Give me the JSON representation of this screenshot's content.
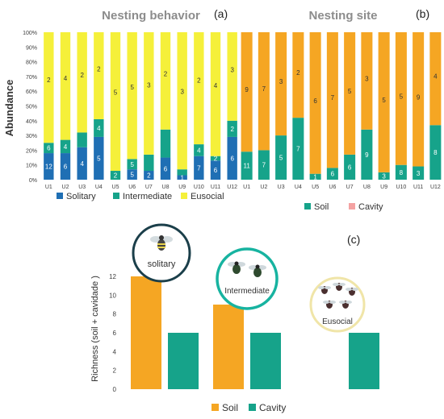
{
  "colors": {
    "solitary": "#1f6fb4",
    "intermediate": "#16a38a",
    "eusocial": "#f5f03a",
    "soil": "#16a38a",
    "cavity": "#f5a623",
    "cavity_legend": "#f4a2a2",
    "soil_c": "#f5a623",
    "cavity_c": "#16a38a"
  },
  "chart_data": [
    {
      "panel": "(a)",
      "type": "bar",
      "stacked": true,
      "percent": true,
      "title": "Nesting behavior",
      "ylabel": "Abundance",
      "ylim": [
        0,
        100
      ],
      "yticks": [
        "0%",
        "10%",
        "20%",
        "30%",
        "40%",
        "50%",
        "60%",
        "70%",
        "80%",
        "90%",
        "100%"
      ],
      "categories": [
        "U1",
        "U2",
        "U3",
        "U4",
        "U5",
        "U6",
        "U7",
        "U8",
        "U9",
        "U10",
        "U11",
        "U12"
      ],
      "series": [
        {
          "name": "Solitary",
          "values": [
            12,
            6,
            4,
            5,
            0,
            5,
            2,
            6,
            1,
            7,
            6,
            6
          ],
          "pct": [
            18,
            18,
            22,
            29,
            0,
            7,
            6,
            15,
            3,
            16,
            13,
            29
          ],
          "labels": [
            "12",
            "6",
            "4",
            "5",
            "",
            "5",
            "2",
            "6",
            "1",
            "7",
            "6",
            "6"
          ]
        },
        {
          "name": "Intermediate",
          "values": [
            6,
            4,
            3,
            4,
            2,
            5,
            3,
            6,
            2,
            4,
            2,
            2
          ],
          "pct": [
            7,
            9,
            10,
            12,
            6,
            7,
            11,
            19,
            4,
            8,
            3,
            11
          ],
          "labels": [
            "6",
            "4",
            "",
            "4",
            "2",
            "5",
            "",
            "",
            "",
            "4",
            "2",
            "2"
          ]
        },
        {
          "name": "Eusocial",
          "values": [
            2,
            4,
            2,
            2,
            5,
            5,
            3,
            2,
            3,
            2,
            4,
            3
          ],
          "pct": [
            75,
            73,
            68,
            59,
            94,
            86,
            83,
            66,
            93,
            76,
            84,
            60
          ],
          "labels": [
            "2",
            "4",
            "2",
            "2",
            "5",
            "5",
            "3",
            "2",
            "3",
            "2",
            "4",
            "3"
          ]
        }
      ],
      "legend": [
        "Solitary",
        "Intermediate",
        "Eusocial"
      ]
    },
    {
      "panel": "(b)",
      "type": "bar",
      "stacked": true,
      "percent": true,
      "title": "Nesting site",
      "categories": [
        "U1",
        "U2",
        "U3",
        "U4",
        "U5",
        "U6",
        "U7",
        "U8",
        "U9",
        "U10",
        "U11",
        "U12"
      ],
      "series": [
        {
          "name": "Soil",
          "values": [
            11,
            7,
            5,
            7,
            1,
            6,
            6,
            9,
            3,
            8,
            3,
            8
          ],
          "pct": [
            19,
            20,
            30,
            42,
            4,
            8,
            17,
            34,
            5,
            10,
            9,
            37
          ],
          "labels": [
            "11",
            "7",
            "5",
            "7",
            "1",
            "6",
            "6",
            "9",
            "3",
            "8",
            "3",
            "8"
          ]
        },
        {
          "name": "Cavity",
          "values": [
            9,
            7,
            3,
            2,
            6,
            7,
            5,
            3,
            5,
            5,
            9,
            4
          ],
          "pct": [
            81,
            80,
            70,
            58,
            96,
            92,
            83,
            66,
            95,
            90,
            91,
            63
          ],
          "labels": [
            "9",
            "7",
            "3",
            "2",
            "6",
            "7",
            "5",
            "3",
            "5",
            "5",
            "9",
            "4"
          ]
        }
      ],
      "legend": [
        "Soil",
        "Cavity"
      ]
    },
    {
      "panel": "(c)",
      "type": "bar",
      "ylabel": "Richness (soil + cavidade )",
      "ylim": [
        0,
        12
      ],
      "yticks": [
        "0",
        "2",
        "4",
        "6",
        "8",
        "10",
        "12"
      ],
      "categories": [
        "solitary",
        "Intermediate",
        "Eusocial"
      ],
      "series": [
        {
          "name": "Soil",
          "values": [
            12,
            9,
            0
          ]
        },
        {
          "name": "Cavity",
          "values": [
            6,
            6,
            6
          ]
        }
      ],
      "legend": [
        "Soil",
        "Cavity"
      ]
    }
  ]
}
